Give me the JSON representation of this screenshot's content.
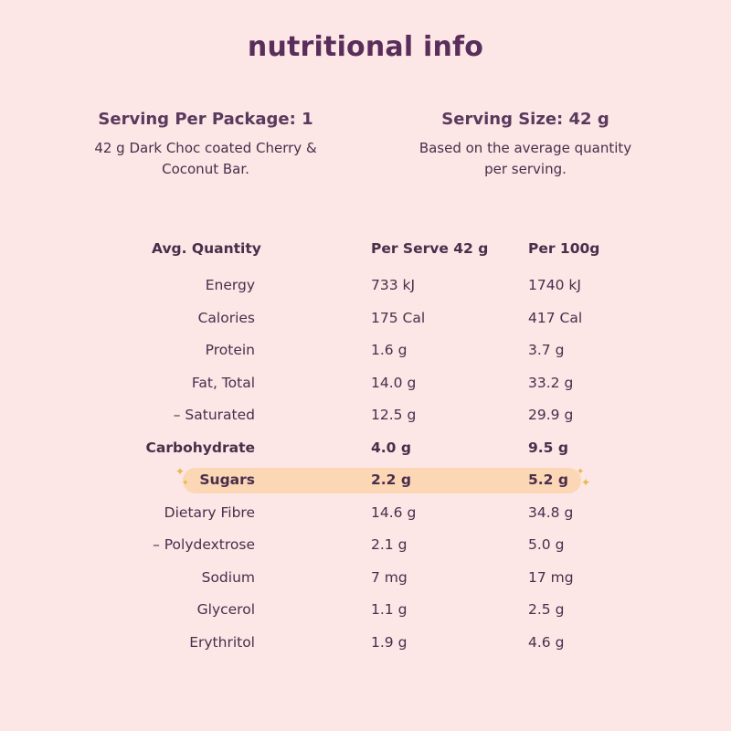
{
  "title": "nutritional info",
  "serving_package": {
    "heading": "Serving Per Package: 1",
    "desc_lines": [
      "42 g Dark Choc coated Cherry &",
      "Coconut Bar."
    ]
  },
  "serving_size": {
    "heading": "Serving Size: 42 g",
    "desc_lines": [
      "Based on the average quantity",
      "per serving."
    ]
  },
  "table": {
    "headers": [
      "Avg. Quantity",
      "Per Serve 42 g",
      "Per 100g"
    ],
    "rows": [
      {
        "label": "Energy",
        "per_serve": "733 kJ",
        "per_100g": "1740 kJ"
      },
      {
        "label": "Calories",
        "per_serve": "175 Cal",
        "per_100g": "417 Cal"
      },
      {
        "label": "Protein",
        "per_serve": "1.6 g",
        "per_100g": "3.7 g"
      },
      {
        "label": "Fat, Total",
        "per_serve": "14.0 g",
        "per_100g": "33.2 g"
      },
      {
        "label": "– Saturated",
        "per_serve": "12.5 g",
        "per_100g": "29.9 g"
      },
      {
        "label": "Carbohydrate",
        "per_serve": "4.0 g",
        "per_100g": "9.5 g"
      },
      {
        "label": "Sugars",
        "per_serve": "2.2 g",
        "per_100g": "5.2 g"
      },
      {
        "label": "Dietary Fibre",
        "per_serve": "14.6 g",
        "per_100g": "34.8 g"
      },
      {
        "label": "– Polydextrose",
        "per_serve": "2.1 g",
        "per_100g": "5.0 g"
      },
      {
        "label": "Sodium",
        "per_serve": "7 mg",
        "per_100g": "17 mg"
      },
      {
        "label": "Glycerol",
        "per_serve": "1.1 g",
        "per_100g": "2.5 g"
      },
      {
        "label": "Erythritol",
        "per_serve": "1.9 g",
        "per_100g": "4.6 g"
      }
    ]
  },
  "colors": {
    "background": "#fce6e6",
    "text": "#4a2e4a",
    "title": "#5a2e5a",
    "highlight": "#fbd7b6",
    "sparkle": "#e8b84a"
  },
  "icons": {
    "sparkle": "sparkle-icon"
  }
}
